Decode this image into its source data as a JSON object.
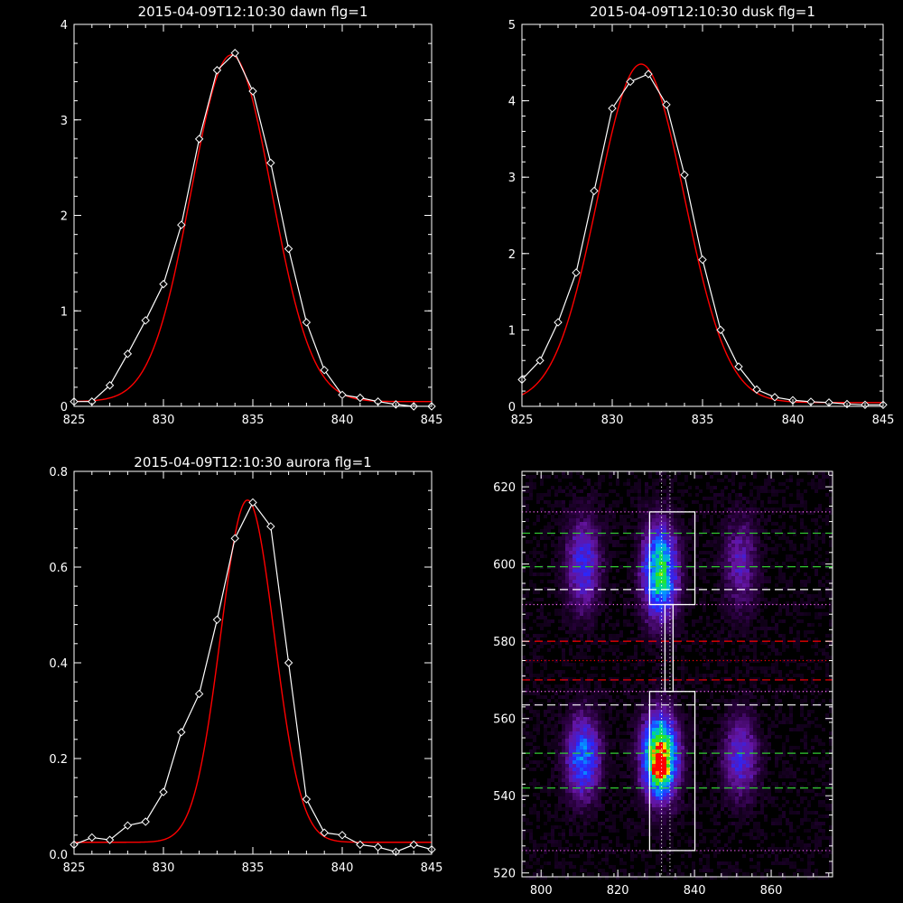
{
  "chart_data": [
    {
      "type": "line",
      "title": "2015-04-09T12:10:30 dawn flg=1",
      "xlim": [
        825,
        845
      ],
      "ylim": [
        0,
        4
      ],
      "xticks": [
        825,
        830,
        835,
        840,
        845
      ],
      "yticks": [
        0,
        1,
        2,
        3,
        4
      ],
      "series": [
        {
          "color": "#ffffff",
          "marker": "diamond",
          "x": [
            825,
            826,
            827,
            828,
            829,
            830,
            831,
            832,
            833,
            834,
            835,
            836,
            837,
            838,
            839,
            840,
            841,
            842,
            843,
            844,
            845
          ],
          "y": [
            0.05,
            0.05,
            0.22,
            0.55,
            0.9,
            1.28,
            1.9,
            2.8,
            3.52,
            3.7,
            3.3,
            2.55,
            1.65,
            0.88,
            0.38,
            0.12,
            0.09,
            0.05,
            0.02,
            0.0,
            0.0
          ]
        },
        {
          "color": "#ff0000",
          "fit": "gaussian",
          "amplitude": 3.63,
          "center": 833.8,
          "sigma": 2.25,
          "offset": 0.05
        }
      ]
    },
    {
      "type": "line",
      "title": "2015-04-09T12:10:30 dusk flg=1",
      "xlim": [
        825,
        845
      ],
      "ylim": [
        0,
        5
      ],
      "xticks": [
        825,
        830,
        835,
        840,
        845
      ],
      "yticks": [
        0,
        1,
        2,
        3,
        4,
        5
      ],
      "series": [
        {
          "color": "#ffffff",
          "marker": "diamond",
          "x": [
            825,
            826,
            827,
            828,
            829,
            830,
            831,
            832,
            833,
            834,
            835,
            836,
            837,
            838,
            839,
            840,
            841,
            842,
            843,
            844,
            845
          ],
          "y": [
            0.35,
            0.6,
            1.1,
            1.75,
            2.82,
            3.9,
            4.25,
            4.35,
            3.95,
            3.03,
            1.92,
            1.0,
            0.52,
            0.22,
            0.12,
            0.08,
            0.06,
            0.05,
            0.03,
            0.02,
            0.02
          ]
        },
        {
          "color": "#ff0000",
          "fit": "gaussian",
          "amplitude": 4.43,
          "center": 831.6,
          "sigma": 2.4,
          "offset": 0.05
        }
      ]
    },
    {
      "type": "line",
      "title": "2015-04-09T12:10:30 aurora flg=1",
      "xlim": [
        825,
        845
      ],
      "ylim": [
        0,
        0.8
      ],
      "xticks": [
        825,
        830,
        835,
        840,
        845
      ],
      "yticks": [
        0.0,
        0.2,
        0.4,
        0.6,
        0.8
      ],
      "ytick_labels": [
        "0.0",
        "0.2",
        "0.4",
        "0.6",
        "0.8"
      ],
      "series": [
        {
          "color": "#ffffff",
          "marker": "diamond",
          "x": [
            825,
            826,
            827,
            828,
            829,
            830,
            831,
            832,
            833,
            834,
            835,
            836,
            837,
            838,
            839,
            840,
            841,
            842,
            843,
            844,
            845
          ],
          "y": [
            0.02,
            0.035,
            0.03,
            0.06,
            0.068,
            0.13,
            0.255,
            0.335,
            0.49,
            0.66,
            0.735,
            0.685,
            0.4,
            0.115,
            0.045,
            0.04,
            0.02,
            0.015,
            0.005,
            0.02,
            0.01
          ]
        },
        {
          "color": "#ff0000",
          "fit": "gaussian",
          "amplitude": 0.715,
          "center": 834.7,
          "sigma": 1.5,
          "offset": 0.025
        }
      ]
    },
    {
      "type": "heatmap",
      "xlim": [
        795,
        876
      ],
      "ylim": [
        519,
        624
      ],
      "xticks": [
        800,
        820,
        840,
        860
      ],
      "yticks": [
        520,
        540,
        560,
        580,
        600,
        620
      ],
      "blobs": [
        {
          "x": 831,
          "y": 598,
          "sx": 3.0,
          "sy": 8.0,
          "amp": 0.65
        },
        {
          "x": 831,
          "y": 550,
          "sx": 3.0,
          "sy": 7.0,
          "amp": 0.95
        },
        {
          "x": 831,
          "y": 547,
          "sx": 1.3,
          "sy": 2.2,
          "amp": 0.35
        },
        {
          "x": 811,
          "y": 600,
          "sx": 3.0,
          "sy": 8.0,
          "amp": 0.32
        },
        {
          "x": 811,
          "y": 550,
          "sx": 3.0,
          "sy": 7.0,
          "amp": 0.45
        },
        {
          "x": 852,
          "y": 600,
          "sx": 3.0,
          "sy": 8.0,
          "amp": 0.22
        },
        {
          "x": 852,
          "y": 550,
          "sx": 3.0,
          "sy": 7.0,
          "amp": 0.3
        }
      ],
      "hlines": [
        {
          "y": 613.5,
          "color": "#ff66ff",
          "style": "dotted"
        },
        {
          "y": 608,
          "color": "#33cc33",
          "style": "dashed"
        },
        {
          "y": 599.3,
          "color": "#33cc33",
          "style": "dashed"
        },
        {
          "y": 593.4,
          "color": "#ffffff",
          "style": "dashed"
        },
        {
          "y": 589.5,
          "color": "#ff66ff",
          "style": "dotted"
        },
        {
          "y": 580,
          "color": "#ff0000",
          "style": "dashed"
        },
        {
          "y": 575,
          "color": "#ff0000",
          "style": "dotted"
        },
        {
          "y": 570,
          "color": "#ff0000",
          "style": "dashed"
        },
        {
          "y": 567,
          "color": "#ff66ff",
          "style": "dotted"
        },
        {
          "y": 563.5,
          "color": "#ffffff",
          "style": "dashed"
        },
        {
          "y": 551,
          "color": "#33cc33",
          "style": "dashed"
        },
        {
          "y": 542,
          "color": "#33cc33",
          "style": "dashed"
        },
        {
          "y": 525.8,
          "color": "#ff66ff",
          "style": "dotted"
        }
      ],
      "vlines": [
        {
          "x": 831.4,
          "color": "#ffffff",
          "style": "dotted"
        },
        {
          "x": 833.6,
          "color": "#ffffff",
          "style": "dotted"
        }
      ],
      "boxes": [
        {
          "x0": 828.3,
          "x1": 840.1,
          "y0": 589.5,
          "y1": 613.5
        },
        {
          "x0": 828.3,
          "x1": 840.1,
          "y0": 525.8,
          "y1": 567
        },
        {
          "x0": 832.3,
          "x1": 834.4,
          "y0": 567,
          "y1": 589.5
        }
      ]
    }
  ]
}
